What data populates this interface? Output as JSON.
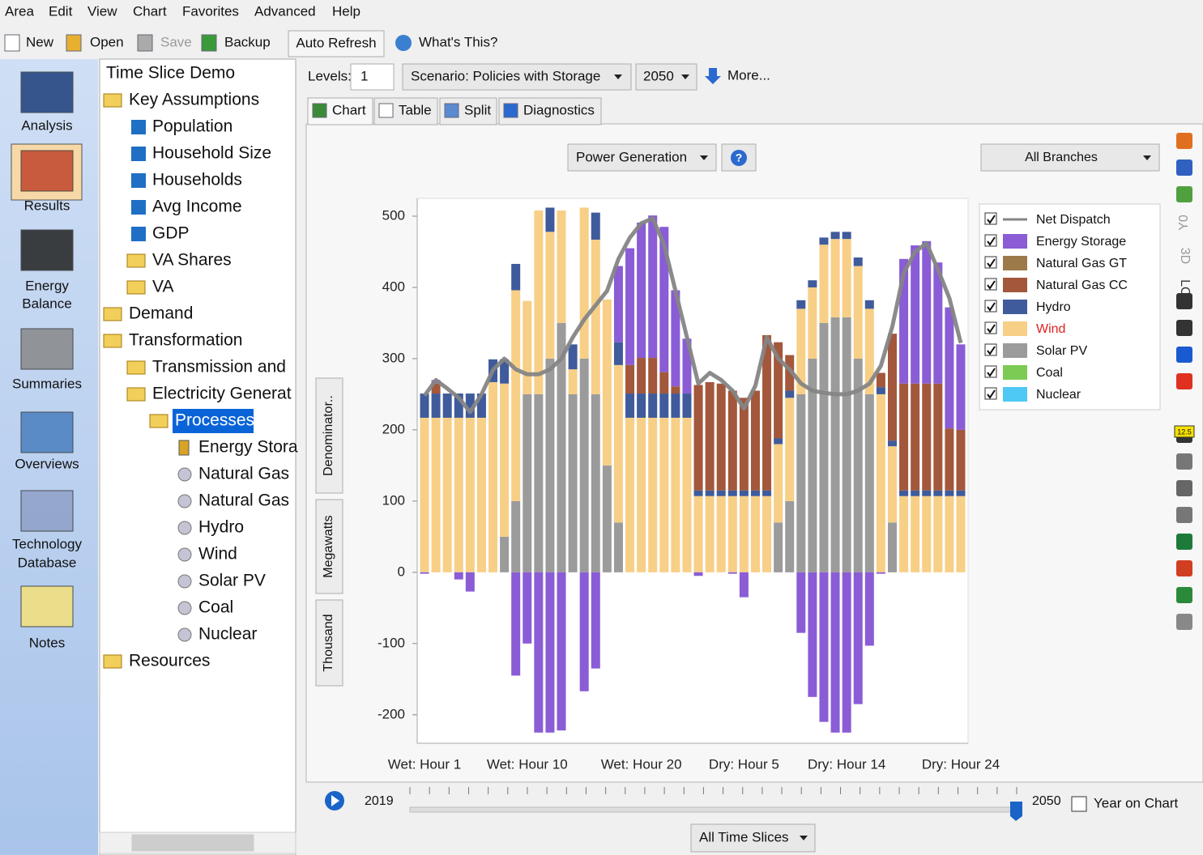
{
  "menu": [
    "Area",
    "Edit",
    "View",
    "Chart",
    "Favorites",
    "Advanced",
    "Help"
  ],
  "toolbar": {
    "new": "New",
    "open": "Open",
    "save": "Save",
    "backup": "Backup",
    "auto_refresh": "Auto Refresh",
    "whats_this": "What's This?"
  },
  "sidebar": [
    [
      "Analysis"
    ],
    [
      "Results"
    ],
    [
      "Energy",
      "Balance"
    ],
    [
      "Summaries"
    ],
    [
      "Overviews"
    ],
    [
      "Technology",
      "Database"
    ],
    [
      "Notes"
    ]
  ],
  "tree": [
    "Time Slice Demo",
    "Key Assumptions",
    "Population",
    "Household Size",
    "Households",
    "Avg Income",
    "GDP",
    "VA Shares",
    "VA",
    "Demand",
    "Transformation",
    "Transmission and",
    "Electricity Generat",
    "Processes",
    "Energy Stora",
    "Natural Gas",
    "Natural Gas",
    "Hydro",
    "Wind",
    "Solar PV",
    "Coal",
    "Nuclear",
    "Resources"
  ],
  "controls": {
    "levels_label": "Levels:",
    "levels_value": "1",
    "scenario": "Scenario: Policies with Storage",
    "year": "2050",
    "more": "More..."
  },
  "tabs": [
    "Chart",
    "Table",
    "Split",
    "Diagnostics"
  ],
  "chart_toolbar": {
    "variable": "Power Generation",
    "help": "?",
    "branches": "All Branches"
  },
  "units": [
    "Denominator..",
    "Megawatts",
    "Thousand"
  ],
  "right_toolbar": [
    "Y0",
    "3D",
    "LOG",
    "12.5"
  ],
  "slider": {
    "start": "2019",
    "end": "2050",
    "year_on_chart": "Year on Chart",
    "time_slices": "All Time Slices"
  },
  "chart_data": {
    "type": "bar",
    "stacked": true,
    "categories": [
      "Wet: Hour 1",
      null,
      null,
      null,
      null,
      null,
      null,
      null,
      null,
      "Wet: Hour 10",
      null,
      null,
      null,
      null,
      null,
      null,
      null,
      null,
      null,
      "Wet: Hour 20",
      null,
      null,
      null,
      null,
      null,
      null,
      null,
      null,
      "Dry: Hour 5",
      null,
      null,
      null,
      null,
      null,
      null,
      null,
      null,
      "Dry: Hour 14",
      null,
      null,
      null,
      null,
      null,
      null,
      null,
      null,
      null,
      "Dry: Hour 24"
    ],
    "ylim": [
      -240,
      525
    ],
    "yticks": [
      -200,
      -100,
      0,
      100,
      200,
      300,
      400,
      500
    ],
    "series": [
      {
        "name": "Net Dispatch",
        "type": "line",
        "color": "#858585",
        "values": [
          248,
          270,
          258,
          245,
          225,
          250,
          284,
          300,
          285,
          278,
          278,
          285,
          300,
          330,
          355,
          375,
          395,
          440,
          470,
          490,
          497,
          460,
          395,
          330,
          265,
          280,
          270,
          255,
          230,
          262,
          330,
          300,
          285,
          265,
          255,
          252,
          250,
          250,
          255,
          265,
          290,
          345,
          420,
          450,
          462,
          425,
          385,
          322
        ]
      },
      {
        "name": "Energy Storage",
        "color": "#8a5cd6",
        "values": [
          -2,
          5,
          0,
          -10,
          -27,
          0,
          0,
          0,
          -145,
          -100,
          -225,
          -225,
          -222,
          0,
          -167,
          -135,
          0,
          107,
          164,
          190,
          200,
          204,
          135,
          77,
          -5,
          0,
          0,
          -2,
          -35,
          0,
          0,
          0,
          0,
          -85,
          -175,
          -210,
          -225,
          -225,
          -185,
          -103,
          -2,
          0,
          175,
          194,
          200,
          170,
          170,
          120
        ]
      },
      {
        "name": "Natural Gas GT",
        "color": "#9c7a4a",
        "values": [
          0,
          0,
          0,
          0,
          0,
          0,
          0,
          0,
          0,
          0,
          0,
          0,
          0,
          0,
          0,
          0,
          0,
          0,
          0,
          0,
          0,
          0,
          0,
          0,
          0,
          0,
          0,
          0,
          0,
          0,
          0,
          0,
          0,
          0,
          0,
          0,
          0,
          0,
          0,
          0,
          0,
          0,
          0,
          0,
          0,
          0,
          0,
          0
        ]
      },
      {
        "name": "Natural Gas CC",
        "color": "#a3573b",
        "values": [
          0,
          14,
          0,
          0,
          0,
          0,
          0,
          0,
          0,
          0,
          0,
          0,
          0,
          0,
          0,
          0,
          0,
          0,
          40,
          50,
          50,
          30,
          10,
          0,
          148,
          152,
          150,
          140,
          130,
          140,
          218,
          135,
          50,
          0,
          0,
          0,
          0,
          0,
          0,
          0,
          20,
          150,
          150,
          150,
          150,
          150,
          87,
          85
        ]
      },
      {
        "name": "Hydro",
        "color": "#3f5b9b",
        "values": [
          34,
          34,
          34,
          34,
          34,
          34,
          32,
          34,
          37,
          0,
          0,
          34,
          0,
          35,
          0,
          38,
          0,
          32,
          34,
          34,
          34,
          34,
          34,
          34,
          8,
          8,
          8,
          8,
          8,
          8,
          8,
          8,
          10,
          12,
          10,
          10,
          10,
          10,
          12,
          12,
          10,
          8,
          8,
          8,
          8,
          8,
          8,
          8
        ]
      },
      {
        "name": "Wind",
        "color": "#f7cf86",
        "values": [
          217,
          217,
          217,
          217,
          217,
          217,
          267,
          215,
          296,
          131,
          258,
          178,
          158,
          35,
          212,
          217,
          233,
          221,
          217,
          217,
          217,
          217,
          217,
          217,
          107,
          107,
          107,
          107,
          107,
          107,
          107,
          110,
          145,
          120,
          100,
          110,
          110,
          110,
          130,
          120,
          250,
          107,
          107,
          107,
          107,
          107,
          107,
          107
        ]
      },
      {
        "name": "Solar PV",
        "color": "#9b9b9b",
        "values": [
          0,
          0,
          0,
          0,
          0,
          0,
          0,
          50,
          100,
          250,
          250,
          300,
          350,
          250,
          300,
          250,
          150,
          70,
          0,
          0,
          0,
          0,
          0,
          0,
          0,
          0,
          0,
          0,
          0,
          0,
          0,
          70,
          100,
          250,
          300,
          350,
          358,
          358,
          300,
          250,
          0,
          70,
          0,
          0,
          0,
          0,
          0,
          0
        ]
      },
      {
        "name": "Coal",
        "color": "#7ccb55",
        "values": [
          0,
          0,
          0,
          0,
          0,
          0,
          0,
          0,
          0,
          0,
          0,
          0,
          0,
          0,
          0,
          0,
          0,
          0,
          0,
          0,
          0,
          0,
          0,
          0,
          0,
          0,
          0,
          0,
          0,
          0,
          0,
          0,
          0,
          0,
          0,
          0,
          0,
          0,
          0,
          0,
          0,
          0,
          0,
          0,
          0,
          0,
          0,
          0
        ]
      },
      {
        "name": "Nuclear",
        "color": "#4ec8f4",
        "values": [
          0,
          0,
          0,
          0,
          0,
          0,
          0,
          0,
          0,
          0,
          0,
          0,
          0,
          0,
          0,
          0,
          0,
          0,
          0,
          0,
          0,
          0,
          0,
          0,
          0,
          0,
          0,
          0,
          0,
          0,
          0,
          0,
          0,
          0,
          0,
          0,
          0,
          0,
          0,
          0,
          0,
          0,
          0,
          0,
          0,
          0,
          0,
          0
        ]
      }
    ]
  }
}
